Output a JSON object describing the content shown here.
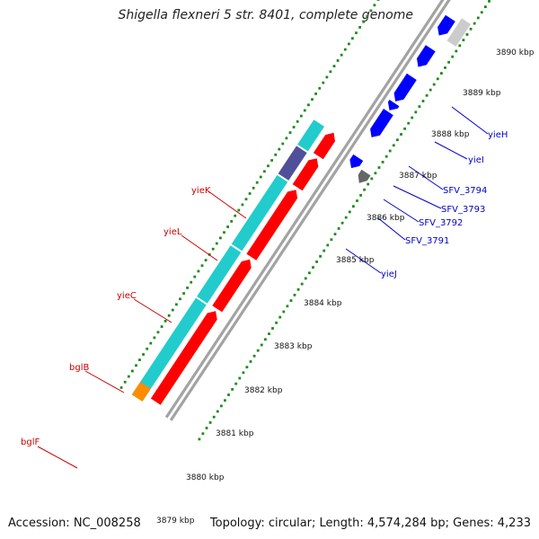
{
  "title": "Shigella flexneri 5 str. 8401, complete genome",
  "accession_text": "Accession: NC_008258",
  "summary_text": "Topology: circular; Length: 4,574,284 bp; Genes: 4,233",
  "colors": {
    "backbone": "#a3a3a3",
    "tick_dots": "#1f8a1f",
    "forward_gene": "#ff0000",
    "reverse_gene": "#0000ff",
    "forward_cds_track": "#22cccc",
    "forward_cds_alt": "#50509a",
    "reverse_dark": "#666666",
    "reverse_light": "#cccccc",
    "start_gene": "#ff8c00",
    "label_forward": "#cc0000",
    "label_reverse": "#0000cc"
  },
  "scale_labels": [
    {
      "kbp": 3879,
      "text": "3879 kbp"
    },
    {
      "kbp": 3880,
      "text": "3880 kbp"
    },
    {
      "kbp": 3881,
      "text": "3881 kbp"
    },
    {
      "kbp": 3882,
      "text": "3882 kbp"
    },
    {
      "kbp": 3883,
      "text": "3883 kbp"
    },
    {
      "kbp": 3884,
      "text": "3884 kbp"
    },
    {
      "kbp": 3885,
      "text": "3885 kbp"
    },
    {
      "kbp": 3886,
      "text": "3886 kbp"
    },
    {
      "kbp": 3887,
      "text": "3887 kbp"
    },
    {
      "kbp": 3888,
      "text": "3888 kbp"
    },
    {
      "kbp": 3889,
      "text": "3889 kbp"
    },
    {
      "kbp": 3890,
      "text": "3890 kbp"
    }
  ],
  "forward_labels": [
    "yieK",
    "yieL",
    "yieC",
    "bglB",
    "bglF"
  ],
  "reverse_labels": [
    "yieH",
    "yieI",
    "SFV_3794",
    "SFV_3793",
    "SFV_3792",
    "SFV_3791",
    "yieJ"
  ]
}
